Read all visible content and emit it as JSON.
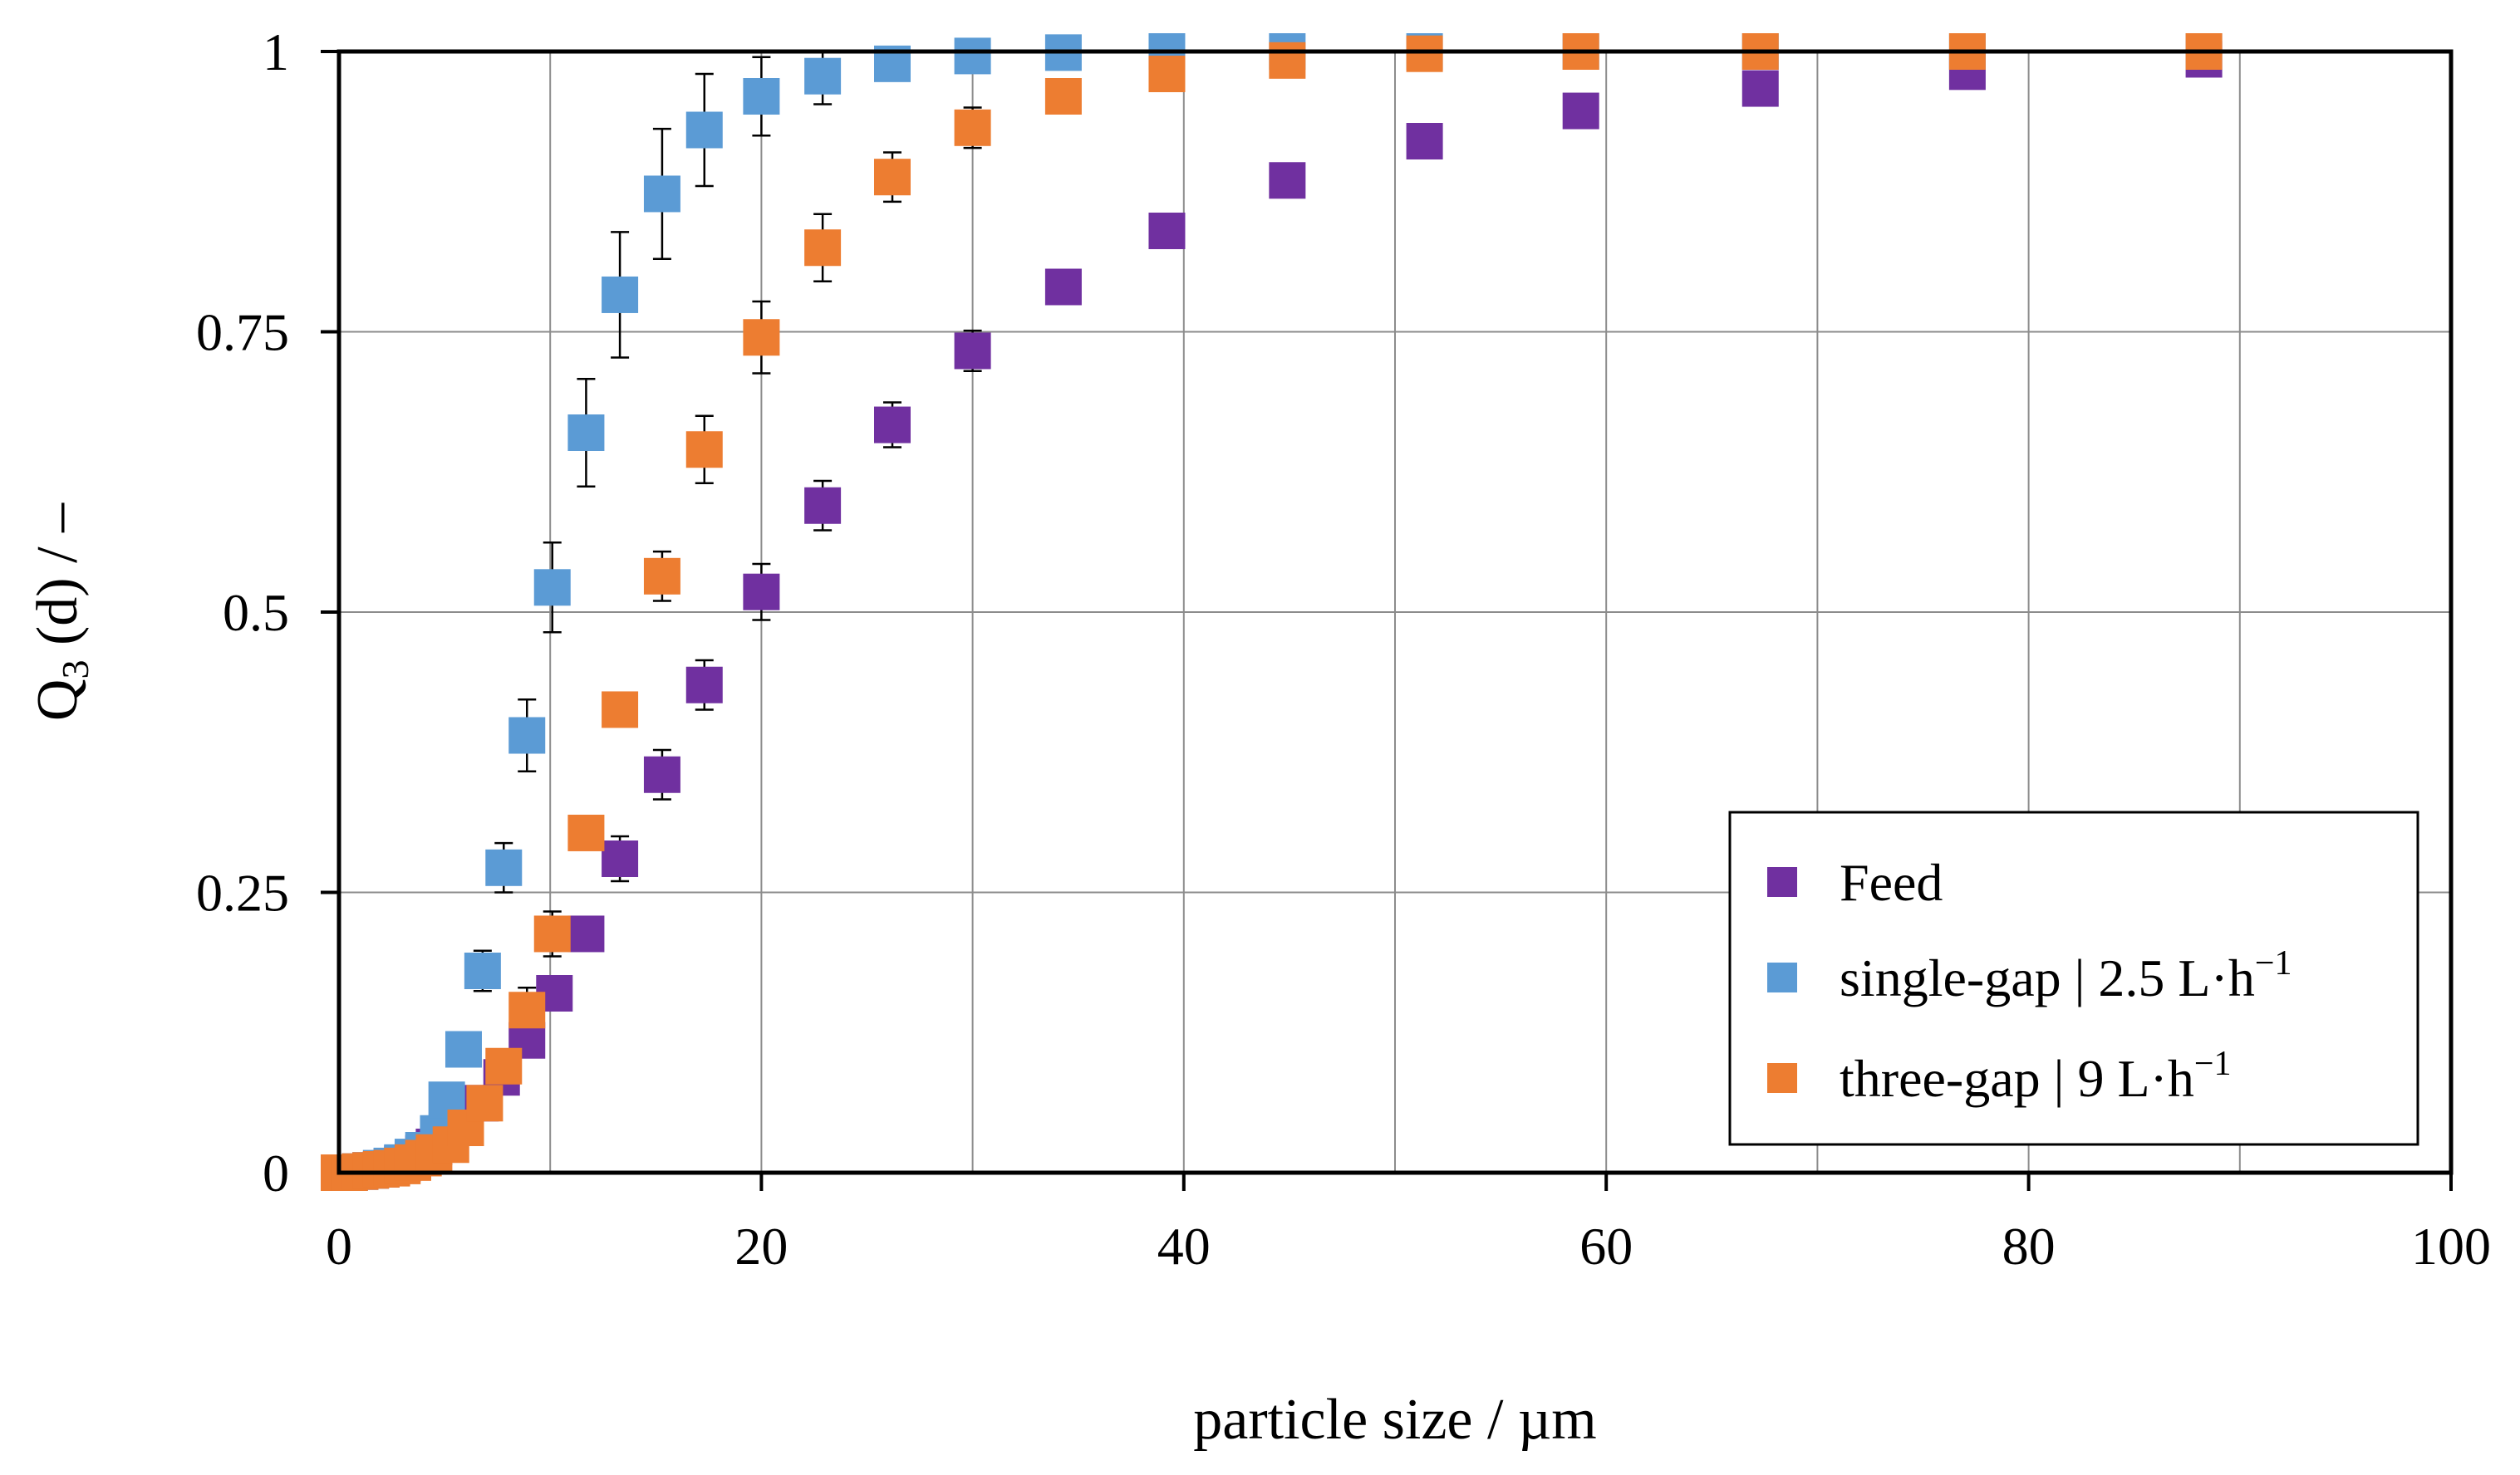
{
  "chart_data": {
    "type": "scatter",
    "title": "",
    "xlabel": "particle size / µm",
    "ylabel": "Q3 (d) / –",
    "ylabel_main": "Q",
    "ylabel_sub": "3",
    "ylabel_rest": " (d) / –",
    "xlim": [
      0,
      100
    ],
    "ylim": [
      0,
      1
    ],
    "x_ticks": [
      "0",
      "20",
      "40",
      "60",
      "80",
      "100"
    ],
    "x_tick_values": [
      0,
      20,
      40,
      60,
      80,
      100
    ],
    "y_ticks": [
      "0",
      "0.25",
      "0.5",
      "0.75",
      "1"
    ],
    "y_tick_values": [
      0,
      0.25,
      0.5,
      0.75,
      1
    ],
    "grid": true,
    "legend_position": "bottom-right",
    "series": [
      {
        "name": "Feed",
        "color": "#7030A0",
        "x": [
          0,
          0.5,
          1,
          1.5,
          2,
          2.5,
          3,
          3.5,
          4,
          4.5,
          5,
          5.8,
          6.7,
          7.7,
          8.9,
          10.2,
          11.7,
          13.3,
          15.3,
          17.3,
          20,
          22.9,
          26.2,
          30,
          34.3,
          39.2,
          44.9,
          51.4,
          58.8,
          67.3,
          77.1,
          88.3
        ],
        "y": [
          0,
          0,
          0.001,
          0.002,
          0.003,
          0.005,
          0.008,
          0.012,
          0.017,
          0.023,
          0.03,
          0.045,
          0.062,
          0.085,
          0.118,
          0.16,
          0.213,
          0.28,
          0.355,
          0.435,
          0.518,
          0.595,
          0.667,
          0.733,
          0.79,
          0.84,
          0.885,
          0.92,
          0.947,
          0.967,
          0.982,
          0.993
        ],
        "err": [
          0,
          0,
          0,
          0,
          0,
          0,
          0,
          0,
          0,
          0,
          0,
          0,
          0,
          0,
          0,
          0.01,
          0.015,
          0.02,
          0.022,
          0.022,
          0.025,
          0.022,
          0.02,
          0.018,
          0.015,
          0.012,
          0,
          0,
          0,
          0,
          0,
          0
        ]
      },
      {
        "name": "single-gap | 2.5 L·h",
        "name_sup": "−1",
        "color": "#5B9BD5",
        "x": [
          0,
          0.5,
          1,
          1.5,
          2,
          2.5,
          3,
          3.5,
          4,
          4.7,
          5.1,
          5.9,
          6.8,
          7.8,
          8.9,
          10.1,
          11.7,
          13.3,
          15.3,
          17.3,
          20,
          22.9,
          26.2,
          30,
          34.3,
          39.2,
          44.9,
          51.4,
          58.8,
          67.3,
          77.1,
          88.3
        ],
        "y": [
          0,
          0,
          0.001,
          0.002,
          0.004,
          0.006,
          0.009,
          0.014,
          0.02,
          0.035,
          0.065,
          0.11,
          0.18,
          0.272,
          0.39,
          0.522,
          0.66,
          0.783,
          0.873,
          0.93,
          0.96,
          0.978,
          0.989,
          0.996,
          0.999,
          1,
          1,
          1,
          1,
          1,
          1,
          1
        ],
        "err": [
          0,
          0,
          0,
          0,
          0,
          0,
          0,
          0,
          0,
          0,
          0,
          0.015,
          0.018,
          0.022,
          0.032,
          0.04,
          0.048,
          0.056,
          0.058,
          0.05,
          0.035,
          0.025,
          0.015,
          0.01,
          0,
          0,
          0,
          0,
          0,
          0,
          0,
          0
        ]
      },
      {
        "name": "three-gap | 9 L·h",
        "name_sup": "−1",
        "color": "#ED7D31",
        "x": [
          0,
          0.5,
          1,
          1.5,
          2,
          2.5,
          3,
          3.5,
          4,
          4.5,
          5.3,
          6,
          6.9,
          7.8,
          8.9,
          10.1,
          11.7,
          13.3,
          15.3,
          17.3,
          20,
          22.9,
          26.2,
          30,
          34.3,
          39.2,
          44.9,
          51.4,
          58.8,
          67.3,
          77.1,
          88.3
        ],
        "y": [
          0,
          0,
          0.001,
          0.002,
          0.003,
          0.004,
          0.006,
          0.009,
          0.013,
          0.018,
          0.025,
          0.04,
          0.062,
          0.095,
          0.145,
          0.213,
          0.303,
          0.413,
          0.532,
          0.645,
          0.745,
          0.825,
          0.888,
          0.932,
          0.96,
          0.98,
          0.992,
          0.998,
          1,
          1,
          1,
          1
        ],
        "err": [
          0,
          0,
          0,
          0,
          0,
          0,
          0,
          0,
          0,
          0,
          0,
          0,
          0.012,
          0.015,
          0.02,
          0.02,
          0,
          0,
          0.022,
          0.03,
          0.032,
          0.03,
          0.022,
          0.018,
          0,
          0,
          0,
          0,
          0,
          0,
          0,
          0
        ]
      }
    ]
  }
}
